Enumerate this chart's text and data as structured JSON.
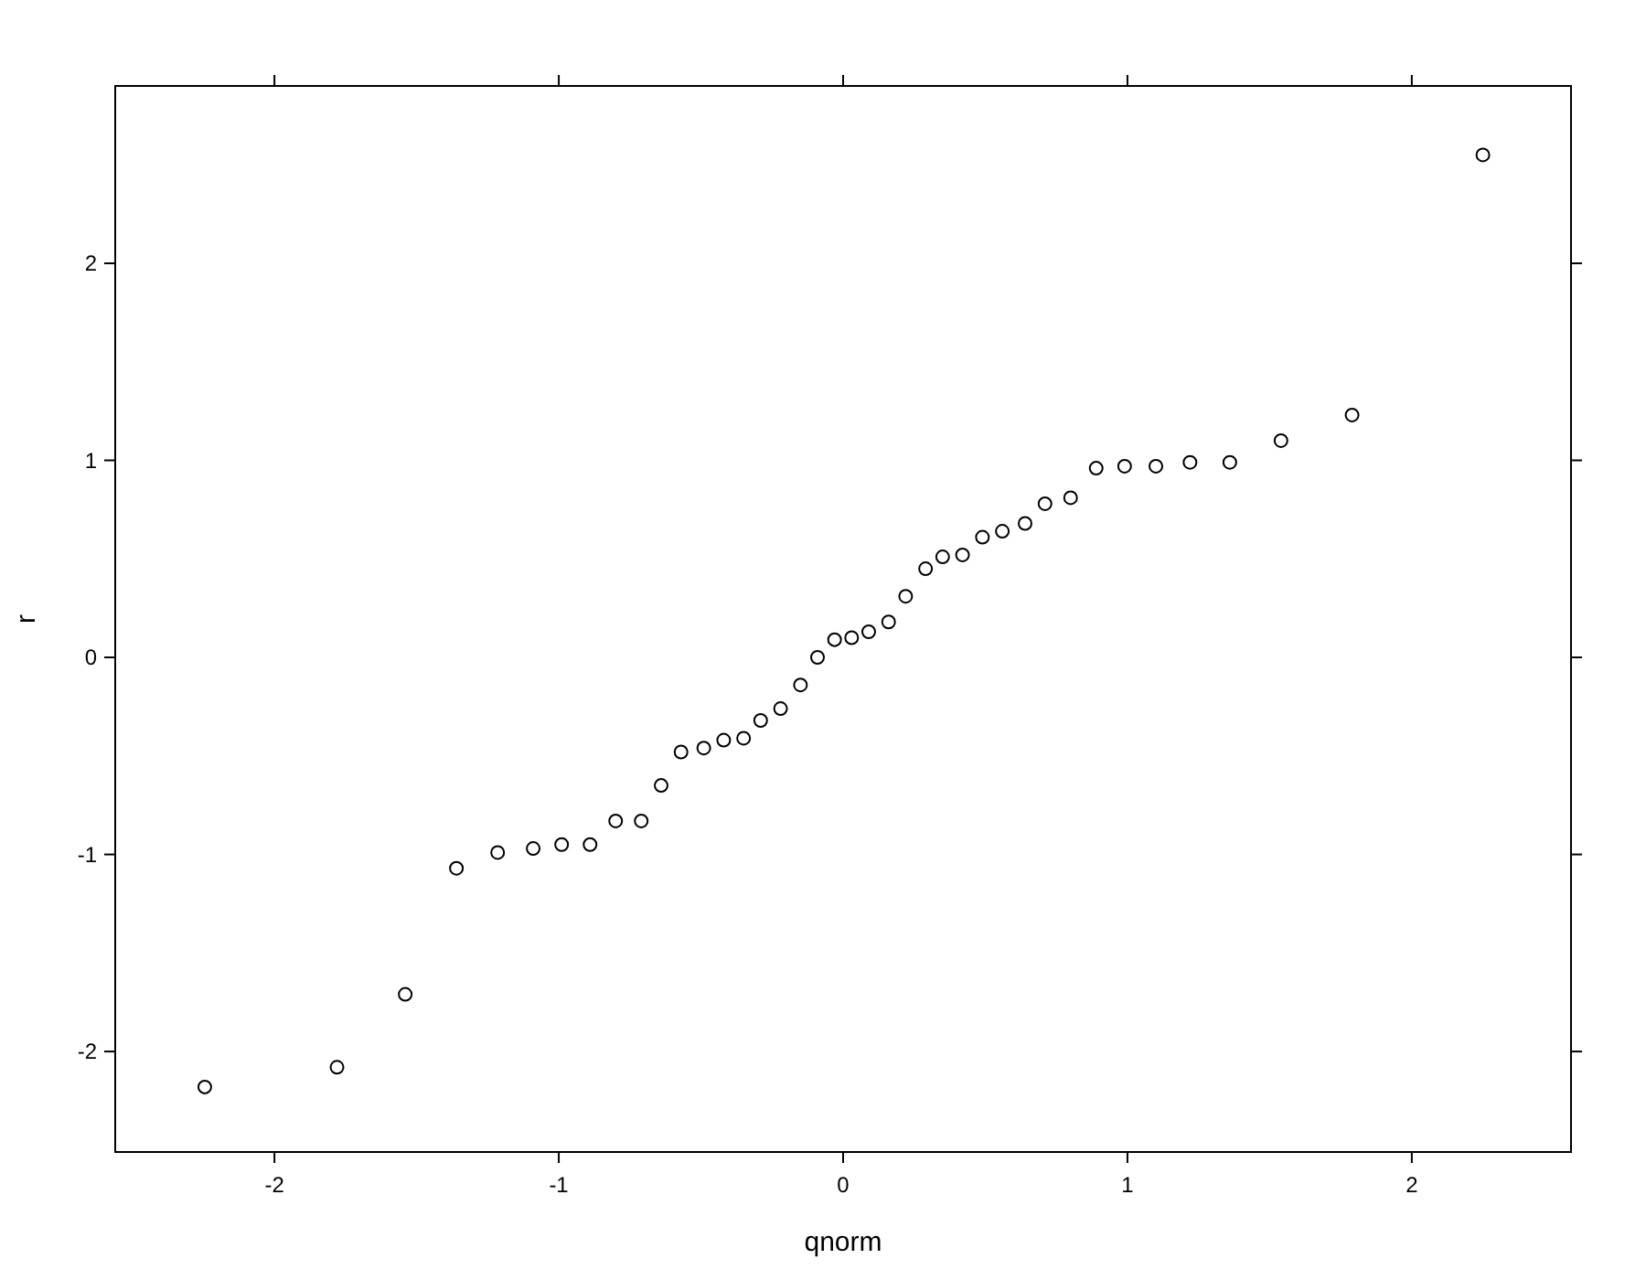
{
  "chart_data": {
    "type": "scatter",
    "xlabel": "qnorm",
    "ylabel": "r",
    "marker": "circle",
    "grid": false,
    "xlim": [
      -2.56,
      2.56
    ],
    "ylim": [
      -2.51,
      2.9
    ],
    "xticks": [
      -2,
      -1,
      0,
      1,
      2
    ],
    "yticks": [
      -2,
      -1,
      0,
      1,
      2
    ],
    "series": [
      {
        "color": "#000000",
        "x": [
          -2.245,
          -1.78,
          -1.54,
          -1.36,
          -1.215,
          -1.09,
          -0.99,
          -0.89,
          -0.8,
          -0.71,
          -0.64,
          -0.57,
          -0.49,
          -0.42,
          -0.35,
          -0.29,
          -0.22,
          -0.15,
          -0.09,
          -0.03,
          0.03,
          0.09,
          0.16,
          0.22,
          0.29,
          0.35,
          0.42,
          0.49,
          0.56,
          0.64,
          0.71,
          0.8,
          0.89,
          0.99,
          1.1,
          1.22,
          1.36,
          1.54,
          1.79,
          2.25
        ],
        "values": [
          -2.18,
          -2.08,
          -1.71,
          -1.07,
          -0.99,
          -0.97,
          -0.95,
          -0.95,
          -0.83,
          -0.83,
          -0.65,
          -0.48,
          -0.46,
          -0.42,
          -0.41,
          -0.32,
          -0.26,
          -0.14,
          0.0,
          0.09,
          0.1,
          0.13,
          0.18,
          0.31,
          0.45,
          0.51,
          0.52,
          0.61,
          0.64,
          0.68,
          0.78,
          0.81,
          0.96,
          0.97,
          0.97,
          0.99,
          0.99,
          1.1,
          1.23,
          2.55
        ]
      }
    ]
  }
}
